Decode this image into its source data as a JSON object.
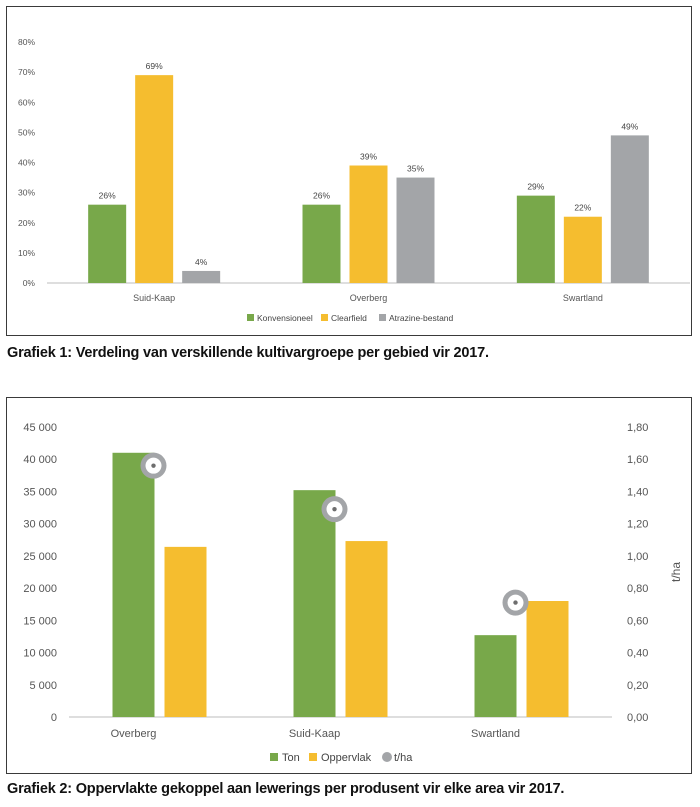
{
  "captions": {
    "chart1": "Grafiek 1: Verdeling van verskillende kultivargroepe per gebied vir 2017.",
    "chart2": "Grafiek 2: Oppervlakte gekoppel aan lewerings per produsent vir elke area vir 2017."
  },
  "chart_data": [
    {
      "type": "bar",
      "title": "",
      "xlabel": "",
      "ylabel": "",
      "categories": [
        "Suid-Kaap",
        "Overberg",
        "Swartland"
      ],
      "series": [
        {
          "name": "Konvensioneel",
          "color": "#78a84a",
          "values": [
            26,
            26,
            29
          ],
          "labels": [
            "26%",
            "26%",
            "29%"
          ]
        },
        {
          "name": "Clearfield",
          "color": "#f5bd2f",
          "values": [
            69,
            39,
            22
          ],
          "labels": [
            "69%",
            "39%",
            "22%"
          ]
        },
        {
          "name": "Atrazine-bestand",
          "color": "#a3a5a8",
          "values": [
            4,
            35,
            49
          ],
          "labels": [
            "4%",
            "35%",
            "49%"
          ]
        }
      ],
      "ylim": [
        0,
        80
      ],
      "yticks": [
        "0%",
        "10%",
        "20%",
        "30%",
        "40%",
        "50%",
        "60%",
        "70%",
        "80%"
      ],
      "grid": false,
      "legend": "bottom"
    },
    {
      "type": "bar",
      "title": "",
      "xlabel": "",
      "ylabel": "",
      "y2label": "t/ha",
      "categories": [
        "Overberg",
        "Suid-Kaap",
        "Swartland"
      ],
      "series": [
        {
          "name": "Ton",
          "color": "#78a84a",
          "axis": "left",
          "values": [
            41000,
            35200,
            12700
          ]
        },
        {
          "name": "Oppervlak",
          "color": "#f5bd2f",
          "axis": "left",
          "values": [
            26400,
            27300,
            18000
          ]
        },
        {
          "name": "t/ha",
          "color": "#a3a5a8",
          "axis": "right",
          "marker": "ring",
          "values": [
            1.56,
            1.29,
            0.71
          ]
        }
      ],
      "ylim": [
        0,
        45000
      ],
      "y2lim": [
        0,
        1.8
      ],
      "yticks": [
        "0",
        "5 000",
        "10 000",
        "15 000",
        "20 000",
        "25 000",
        "30 000",
        "35 000",
        "40 000",
        "45 000"
      ],
      "y2ticks": [
        "0,00",
        "0,20",
        "0,40",
        "0,60",
        "0,80",
        "1,00",
        "1,20",
        "1,40",
        "1,60",
        "1,80"
      ],
      "grid": false,
      "legend": "bottom"
    }
  ]
}
